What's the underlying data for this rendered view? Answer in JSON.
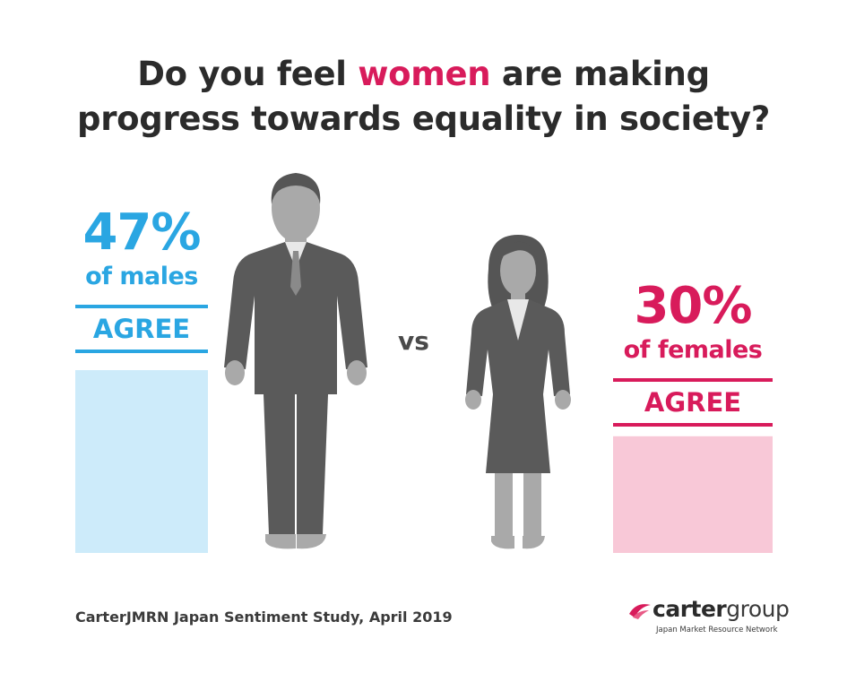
{
  "title": {
    "line1_before": "Do you feel ",
    "line1_highlight": "women",
    "line1_after": " are making",
    "line2": "progress towards equality in society?"
  },
  "vs_label": "vs",
  "footer": {
    "source": "CarterJMRN Japan Sentiment Study, April 2019"
  },
  "logo": {
    "brand_bold": "carter",
    "brand_light": "group",
    "tagline": "Japan Market Resource Network"
  },
  "colors": {
    "male": "#2aa6e2",
    "male_bar": "#cdebfa",
    "female": "#d81b5b",
    "female_bar": "#f8c8d7",
    "figure": "#5a5a5a",
    "figure_skin": "#a9a9a9"
  },
  "chart_data": {
    "type": "bar",
    "title": "Do you feel women are making progress towards equality in society?",
    "categories": [
      "males",
      "females"
    ],
    "values": [
      47,
      30
    ],
    "unit": "%",
    "ylim": [
      0,
      100
    ],
    "series": [
      {
        "name": "males",
        "value": 47,
        "value_label": "47%",
        "sub_label": "of males",
        "agree_label": "AGREE"
      },
      {
        "name": "females",
        "value": 30,
        "value_label": "30%",
        "sub_label": "of females",
        "agree_label": "AGREE"
      }
    ]
  }
}
